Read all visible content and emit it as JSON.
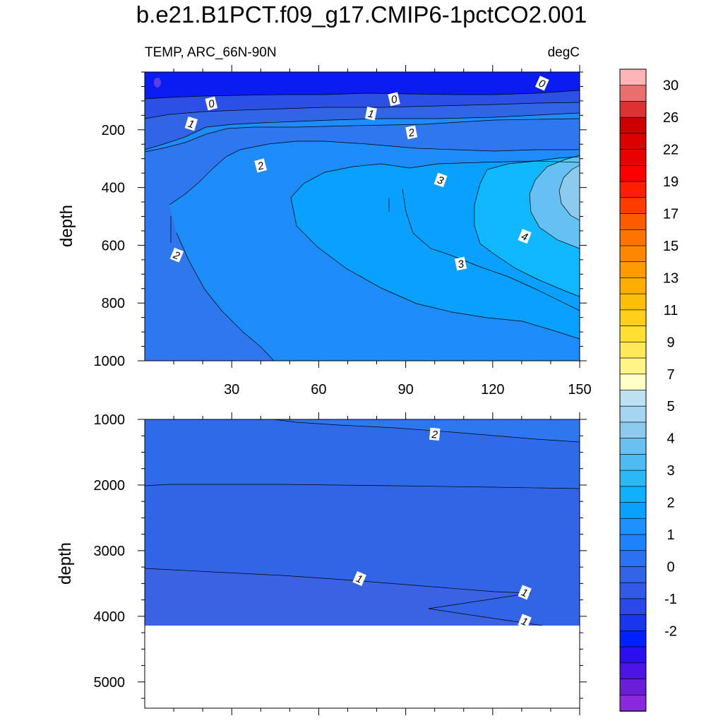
{
  "title": "b.e21.B1PCT.f09_g17.CMIP6-1pctCO2.001",
  "subtitle_left": "TEMP, ARC_66N-90N",
  "subtitle_right": "degC",
  "chart_data": [
    {
      "type": "contour",
      "panel": "upper",
      "variable": "TEMP",
      "region": "ARC_66N-90N",
      "units": "degC",
      "ylabel": "depth",
      "xlim": [
        0,
        150
      ],
      "ylim": [
        1000,
        0
      ],
      "y_reversed": true,
      "xticks": [
        30,
        60,
        90,
        120,
        150
      ],
      "yticks": [
        200,
        400,
        600,
        800,
        1000
      ],
      "contour_labels": [
        {
          "value": "0",
          "x": 137,
          "depth": 40
        },
        {
          "value": "0",
          "x": 23,
          "depth": 110
        },
        {
          "value": "0",
          "x": 86,
          "depth": 95
        },
        {
          "value": "1",
          "x": 16,
          "depth": 180
        },
        {
          "value": "1",
          "x": 78,
          "depth": 145
        },
        {
          "value": "2",
          "x": 92,
          "depth": 210
        },
        {
          "value": "2",
          "x": 40,
          "depth": 325
        },
        {
          "value": "3",
          "x": 102,
          "depth": 375
        },
        {
          "value": "4",
          "x": 131,
          "depth": 570
        },
        {
          "value": "2",
          "x": 11,
          "depth": 635
        },
        {
          "value": "3",
          "x": 109,
          "depth": 665
        }
      ]
    },
    {
      "type": "contour",
      "panel": "lower",
      "variable": "TEMP",
      "units": "degC",
      "ylabel": "depth",
      "xlim": [
        0,
        150
      ],
      "ylim": [
        5400,
        1000
      ],
      "y_reversed": true,
      "yticks": [
        1000,
        2000,
        3000,
        4000,
        5000
      ],
      "bottom_of_data_depth": 4120,
      "contour_labels": [
        {
          "value": "2",
          "x": 100,
          "depth": 1230
        },
        {
          "value": "1",
          "x": 74,
          "depth": 3430
        },
        {
          "value": "1",
          "x": 131,
          "depth": 3640
        },
        {
          "value": "1",
          "x": 131,
          "depth": 4080
        }
      ]
    }
  ],
  "colorbar": {
    "labels": [
      "30",
      "26",
      "22",
      "19",
      "17",
      "15",
      "13",
      "11",
      "9",
      "7",
      "5",
      "4",
      "3",
      "2",
      "1",
      "0",
      "-1",
      "-2"
    ],
    "colors_top_to_bottom": [
      "#fdb5b5",
      "#ea6e6e",
      "#dd3232",
      "#cc0000",
      "#dc0000",
      "#ea0000",
      "#fa0000",
      "#ff1e00",
      "#ff3c00",
      "#ff5a00",
      "#ff7300",
      "#ff8700",
      "#ff9b00",
      "#ffad00",
      "#ffbe0a",
      "#ffcf1a",
      "#ffdf32",
      "#ffe958",
      "#fff587",
      "#ffffc8",
      "#bde0f2",
      "#a5d5f0",
      "#8ccbee",
      "#6ac1f1",
      "#4cbcf3",
      "#2cb7f7",
      "#0fb0ff",
      "#0aa0ff",
      "#1e91ff",
      "#1e82fa",
      "#2a72f0",
      "#3165e6",
      "#325ae8",
      "#2a49e8",
      "#1a35ee",
      "#0020ff",
      "#2a10f0",
      "#4d14e6",
      "#6a1ed7",
      "#8a28e0"
    ]
  },
  "fill_colors": {
    "deep_blue": "#0a1cf2",
    "blue0": "#2c50e6",
    "blue1": "#3165e6",
    "blue2": "#2f77ee",
    "blue3": "#1e8cfa",
    "blue4": "#0aa0ff",
    "blue5": "#12b8ff",
    "blue6": "#64c1f1",
    "blue7": "#8ccbee"
  }
}
